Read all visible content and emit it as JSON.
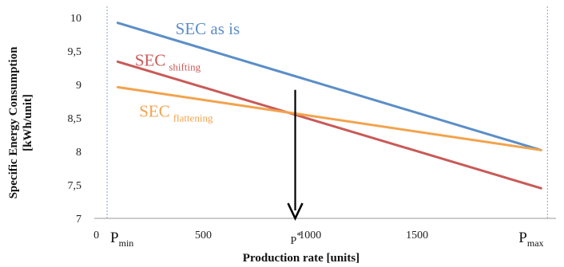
{
  "chart_data": {
    "type": "line",
    "title": "",
    "xlabel": "Production rate [units]",
    "ylabel_line1": "Specific Energy Consumption",
    "ylabel_line2": "[kWh/unit]",
    "xlim": [
      -10,
      2150
    ],
    "ylim": [
      7,
      10
    ],
    "grid": false,
    "x_ticks": [
      {
        "value": 0,
        "label": "0"
      },
      {
        "value": 500,
        "label": "500"
      },
      {
        "value": 1000,
        "label": "1000"
      },
      {
        "value": 1500,
        "label": "1500"
      }
    ],
    "y_ticks": [
      {
        "value": 10,
        "label": "10"
      },
      {
        "value": 9.5,
        "label": "9,5"
      },
      {
        "value": 9,
        "label": "9"
      },
      {
        "value": 8.5,
        "label": "8,5"
      },
      {
        "value": 8,
        "label": "8"
      },
      {
        "value": 7.5,
        "label": "7,5"
      },
      {
        "value": 7,
        "label": "7"
      }
    ],
    "reference_lines": [
      {
        "x": 50,
        "label": "P",
        "sub": "min"
      },
      {
        "x": 2110,
        "label": "P",
        "sub": "max"
      }
    ],
    "series": [
      {
        "name": "SEC as is",
        "sub": "",
        "color": "#5b8ec7",
        "x": [
          100,
          2080
        ],
        "y": [
          9.92,
          8.02
        ],
        "label_at": [
          370,
          9.75
        ]
      },
      {
        "name": "SEC",
        "sub": "shifting",
        "color": "#c85a57",
        "x": [
          100,
          2080
        ],
        "y": [
          9.34,
          7.45
        ],
        "label_at": [
          180,
          9.28
        ]
      },
      {
        "name": "SEC",
        "sub": "flattening",
        "color": "#f2a34d",
        "x": [
          100,
          2080
        ],
        "y": [
          8.96,
          8.02
        ],
        "label_at": [
          200,
          8.52
        ]
      }
    ],
    "annotation": {
      "type": "arrow-down",
      "x": 930,
      "y_from": 8.92,
      "y_to": 7.0,
      "label": "P",
      "sup": "*"
    }
  }
}
